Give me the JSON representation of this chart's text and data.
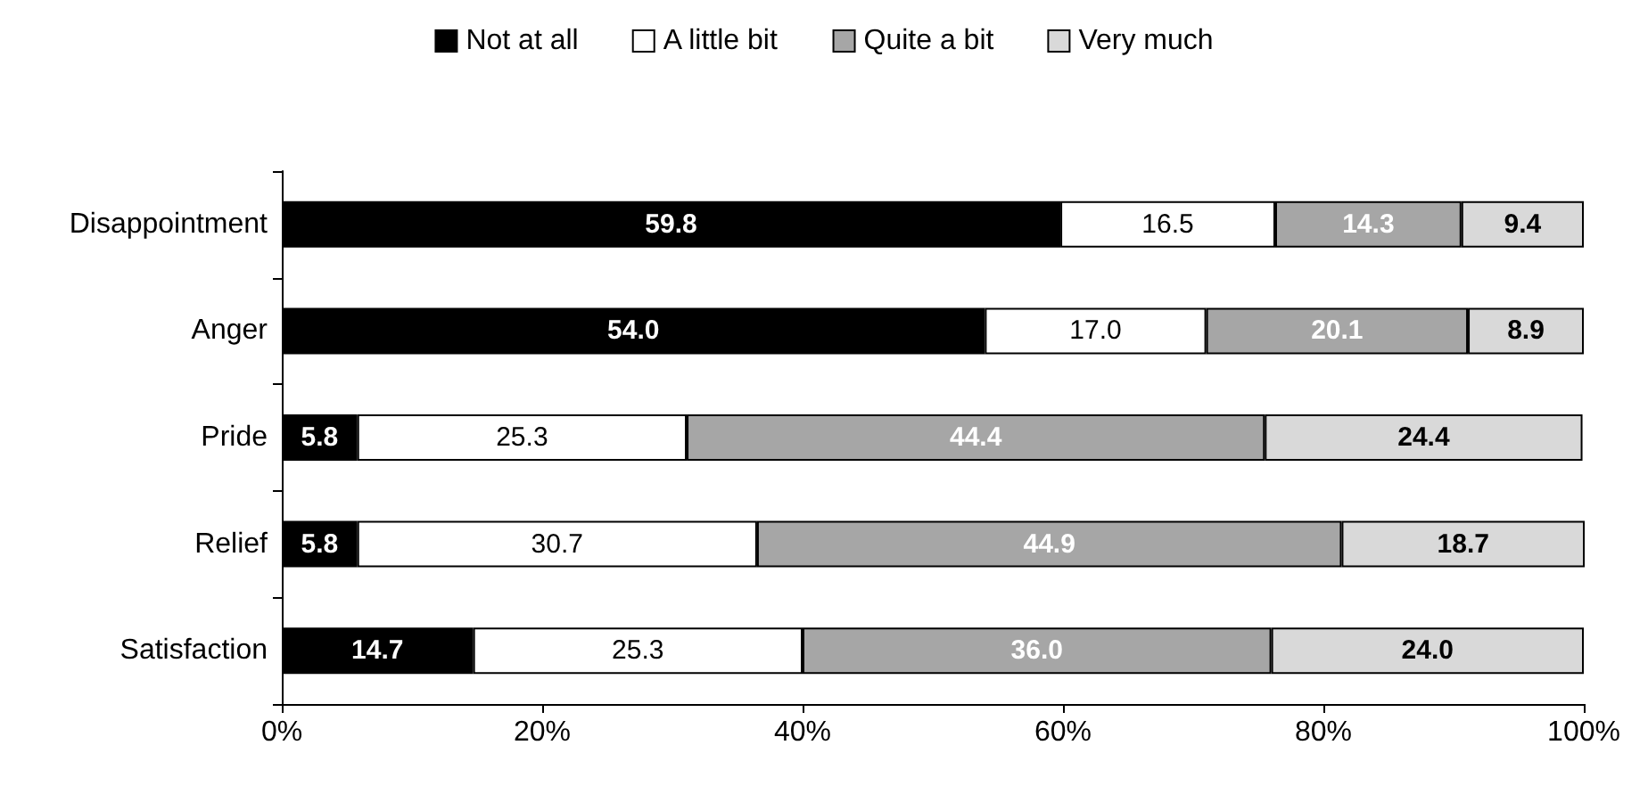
{
  "chart_data": {
    "type": "bar",
    "orientation": "horizontal",
    "stacked": true,
    "legend": "top",
    "grid": false,
    "categories": [
      "Disappointment",
      "Anger",
      "Pride",
      "Relief",
      "Satisfaction"
    ],
    "series": [
      {
        "name": "Not at all",
        "color": "#000000",
        "values": [
          59.8,
          54.0,
          5.8,
          5.8,
          14.7
        ],
        "value_labels": [
          "59.8",
          "54.0",
          "5.8",
          "5.8",
          "14.7"
        ]
      },
      {
        "name": "A little bit",
        "color": "#ffffff",
        "values": [
          16.5,
          17.0,
          25.3,
          30.7,
          25.3
        ],
        "value_labels": [
          "16.5",
          "17.0",
          "25.3",
          "30.7",
          "25.3"
        ]
      },
      {
        "name": "Quite a bit",
        "color": "#a6a6a6",
        "values": [
          14.3,
          20.1,
          44.4,
          44.9,
          36.0
        ],
        "value_labels": [
          "14.3",
          "20.1",
          "44.4",
          "44.9",
          "36.0"
        ]
      },
      {
        "name": "Very much",
        "color": "#d9d9d9",
        "values": [
          9.4,
          8.9,
          24.4,
          18.7,
          24.0
        ],
        "value_labels": [
          "9.4",
          "8.9",
          "24.4",
          "18.7",
          "24.0"
        ]
      }
    ],
    "xlim": [
      0,
      100
    ],
    "xticks": [
      {
        "value": 0,
        "label": "0%"
      },
      {
        "value": 20,
        "label": "20%"
      },
      {
        "value": 40,
        "label": "40%"
      },
      {
        "value": 60,
        "label": "60%"
      },
      {
        "value": 80,
        "label": "80%"
      },
      {
        "value": 100,
        "label": "100%"
      }
    ]
  }
}
